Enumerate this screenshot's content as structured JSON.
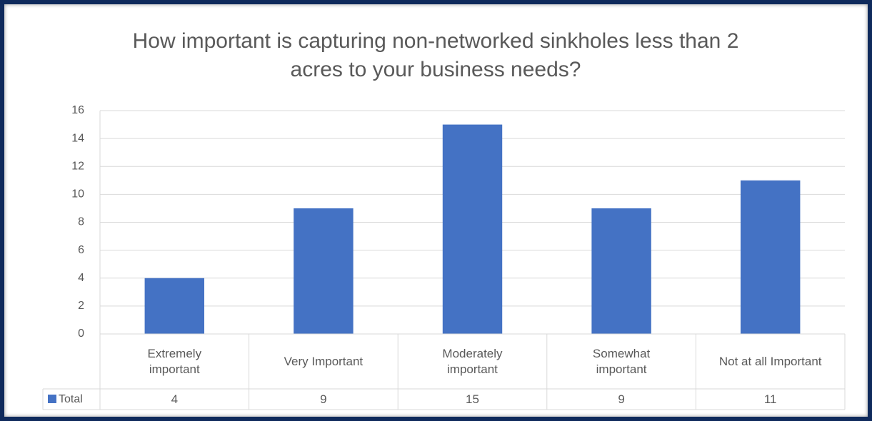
{
  "chart_data": {
    "type": "bar",
    "title": "How important is capturing non-networked sinkholes less than 2 acres to your business needs?",
    "categories": [
      "Extremely\nimportant",
      "Very Important",
      "Moderately\nimportant",
      "Somewhat\nimportant",
      "Not at all Important"
    ],
    "series": [
      {
        "name": "Total",
        "color": "#4472c4",
        "values": [
          4,
          9,
          15,
          9,
          11
        ]
      }
    ],
    "ylim": [
      0,
      16
    ],
    "yticks": [
      0,
      2,
      4,
      6,
      8,
      10,
      12,
      14,
      16
    ],
    "grid": true,
    "data_table": true
  }
}
